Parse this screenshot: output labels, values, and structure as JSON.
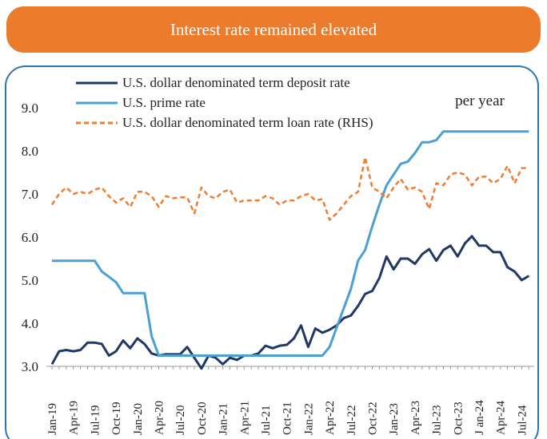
{
  "chart_data": {
    "type": "line",
    "title": "Interest rate remained elevated",
    "annotation": "per year",
    "categories": [
      "Jan-19",
      null,
      null,
      "Apr-19",
      null,
      null,
      "Jul-19",
      null,
      null,
      "Oct-19",
      null,
      null,
      "Jan-20",
      null,
      null,
      "Apr-20",
      null,
      null,
      "Jul-20",
      null,
      null,
      "Oct-20",
      null,
      null,
      "Jan-21",
      null,
      null,
      "Apr-21",
      null,
      null,
      "Jul-21",
      null,
      null,
      "Oct-21",
      null,
      null,
      "Jan-22",
      null,
      null,
      "Apr-22",
      null,
      null,
      "Jul-22",
      null,
      null,
      "Oct-22",
      null,
      null,
      "Jan-23",
      null,
      null,
      "Apr-23",
      null,
      null,
      "Jul-23",
      null,
      null,
      "Oct-23",
      null,
      null,
      "J an-24",
      null,
      null,
      "Apr-24",
      null,
      null,
      "Jul-24",
      null
    ],
    "ylim": [
      3,
      9
    ],
    "yticks": [
      {
        "value": 3,
        "label": "3.0"
      },
      {
        "value": 4,
        "label": "4.0"
      },
      {
        "value": 5,
        "label": "5.0"
      },
      {
        "value": 6,
        "label": "6.0"
      },
      {
        "value": 7,
        "label": "7.0"
      },
      {
        "value": 8,
        "label": "8.0"
      },
      {
        "value": 9,
        "label": "9.0"
      }
    ],
    "grid": false,
    "series": [
      {
        "name": "U.S. dollar denominated term deposit rate",
        "color": "#1f3864",
        "dash": false,
        "values": [
          3.05,
          3.35,
          3.38,
          3.35,
          3.38,
          3.55,
          3.55,
          3.52,
          3.25,
          3.35,
          3.6,
          3.42,
          3.65,
          3.52,
          3.3,
          3.25,
          3.28,
          3.28,
          3.28,
          3.45,
          3.2,
          2.95,
          3.25,
          3.2,
          3.05,
          3.2,
          3.15,
          3.25,
          3.25,
          3.3,
          3.48,
          3.42,
          3.48,
          3.5,
          3.65,
          3.95,
          3.45,
          3.88,
          3.78,
          3.85,
          3.95,
          4.12,
          4.18,
          4.4,
          4.68,
          4.75,
          5.05,
          5.55,
          5.25,
          5.5,
          5.5,
          5.38,
          5.6,
          5.72,
          5.45,
          5.7,
          5.8,
          5.55,
          5.85,
          6.02,
          5.8,
          5.8,
          5.65,
          5.65,
          5.3,
          5.2,
          5.0,
          5.1
        ]
      },
      {
        "name": "U.S. prime rate",
        "color": "#4a9fd4",
        "dash": false,
        "values": [
          5.45,
          5.45,
          5.45,
          5.45,
          5.45,
          5.45,
          5.45,
          5.2,
          5.08,
          4.95,
          4.7,
          4.7,
          4.7,
          4.7,
          3.7,
          3.25,
          3.25,
          3.25,
          3.25,
          3.25,
          3.25,
          3.25,
          3.25,
          3.25,
          3.25,
          3.25,
          3.25,
          3.25,
          3.25,
          3.25,
          3.25,
          3.25,
          3.25,
          3.25,
          3.25,
          3.25,
          3.25,
          3.25,
          3.25,
          3.45,
          3.9,
          4.35,
          4.8,
          5.45,
          5.7,
          6.25,
          6.75,
          7.2,
          7.45,
          7.7,
          7.75,
          7.95,
          8.2,
          8.2,
          8.25,
          8.45,
          8.45,
          8.45,
          8.45,
          8.45,
          8.45,
          8.45,
          8.45,
          8.45,
          8.45,
          8.45,
          8.45,
          8.45
        ]
      },
      {
        "name": "U.S. dollar denominated term loan rate (RHS)",
        "color": "#ed7d31",
        "dash": true,
        "values": [
          6.75,
          7.0,
          7.15,
          7.0,
          7.05,
          7.0,
          7.1,
          7.15,
          6.95,
          6.8,
          6.9,
          6.7,
          7.05,
          7.05,
          6.95,
          6.7,
          6.95,
          6.9,
          6.92,
          6.92,
          6.55,
          7.15,
          6.95,
          6.9,
          7.05,
          7.1,
          6.8,
          6.85,
          6.85,
          6.85,
          6.95,
          6.9,
          6.75,
          6.85,
          6.85,
          6.95,
          7.0,
          6.85,
          6.88,
          6.4,
          6.55,
          6.75,
          6.95,
          7.05,
          7.85,
          7.15,
          7.05,
          6.9,
          7.15,
          7.35,
          7.1,
          7.15,
          7.05,
          6.65,
          7.25,
          7.2,
          7.45,
          7.5,
          7.45,
          7.2,
          7.4,
          7.4,
          7.25,
          7.35,
          7.65,
          7.25,
          7.6,
          7.6
        ]
      }
    ]
  }
}
